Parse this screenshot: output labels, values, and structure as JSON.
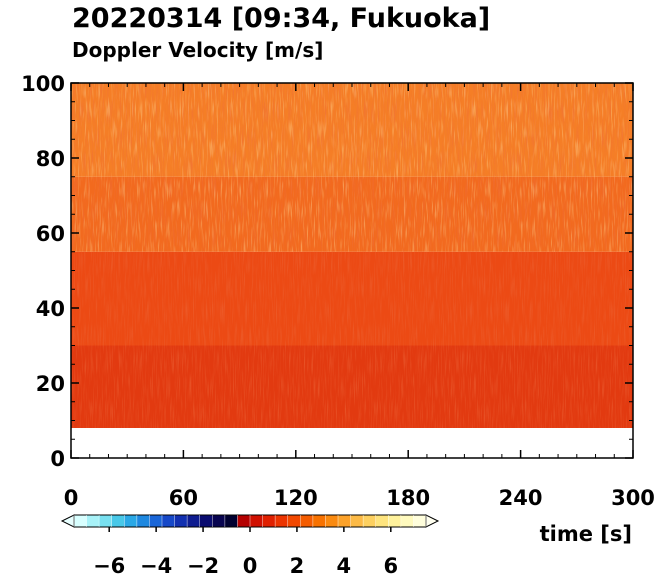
{
  "chart_data": {
    "type": "heatmap",
    "title": "20220314 [09:34, Fukuoka]",
    "subtitle": "Doppler Velocity [m/s]",
    "xlabel": "time [s]",
    "ylabel": "",
    "xlim": [
      0,
      300
    ],
    "ylim": [
      0,
      100
    ],
    "x_ticks": [
      "0",
      "60",
      "120",
      "180",
      "240",
      "300"
    ],
    "y_ticks": [
      "0",
      "20",
      "40",
      "60",
      "80",
      "100"
    ],
    "colorbar": {
      "range": [
        -7.5,
        7.5
      ],
      "tick_labels": [
        "−6",
        "−4",
        "−2",
        "0",
        "2",
        "4",
        "6"
      ],
      "tick_values": [
        -6,
        -4,
        -2,
        0,
        2,
        4,
        6
      ],
      "colors": [
        "#d8ffff",
        "#a8f2f8",
        "#78e0f0",
        "#48c8e8",
        "#2aa8e6",
        "#1e88e0",
        "#1a66d8",
        "#1648c8",
        "#1230b0",
        "#0e1c90",
        "#0a0c70",
        "#080450",
        "#000030",
        "#b40000",
        "#d01000",
        "#e02000",
        "#ec3400",
        "#f24800",
        "#f45c00",
        "#f87200",
        "#fa8a10",
        "#fca22a",
        "#fcba46",
        "#fdd060",
        "#fee47e",
        "#fff29c",
        "#fffabe",
        "#fffedc"
      ]
    },
    "regions": [
      {
        "x": [
          0,
          300
        ],
        "y": [
          8,
          30
        ],
        "level": "1 to 2 m/s",
        "color": "#e23a10"
      },
      {
        "x": [
          0,
          300
        ],
        "y": [
          30,
          55
        ],
        "level": "1.5 to 2.5 m/s",
        "color": "#ec4a14"
      },
      {
        "x": [
          0,
          300
        ],
        "y": [
          55,
          75
        ],
        "level": "2 to 3 m/s",
        "color": "#f26a1e"
      },
      {
        "x": [
          0,
          300
        ],
        "y": [
          75,
          100
        ],
        "level": "2.5 to 3.5 m/s",
        "color": "#f57e26"
      }
    ],
    "gap_band_y": [
      0,
      8
    ]
  }
}
